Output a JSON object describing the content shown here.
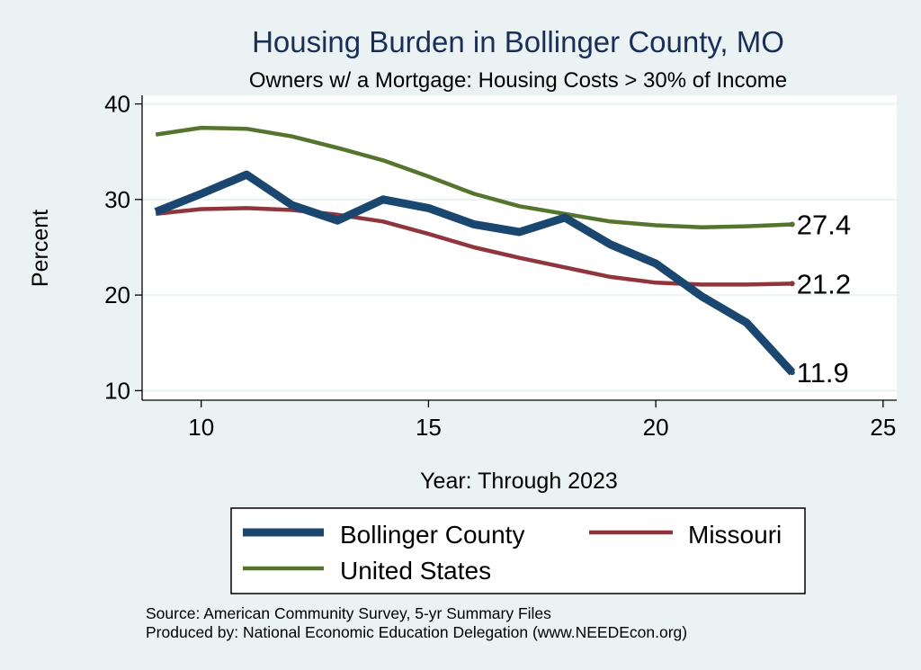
{
  "chart_data": {
    "type": "line",
    "title": "Housing Burden in Bollinger County, MO",
    "subtitle": "Owners w/ a Mortgage: Housing Costs > 30% of Income",
    "xlabel": "Year: Through 2023",
    "ylabel": "Percent",
    "xlim": [
      8.7,
      25.3
    ],
    "ylim": [
      9.0,
      40.9
    ],
    "xticks": [
      10,
      15,
      20,
      25
    ],
    "yticks": [
      10,
      20,
      30,
      40
    ],
    "grid": true,
    "legend_position": "bottom",
    "series": [
      {
        "name": "Bollinger County",
        "color": "#1a476f",
        "x": [
          9,
          10,
          11,
          12,
          13,
          14,
          15,
          16,
          17,
          18,
          19,
          20,
          21,
          22,
          23
        ],
        "values": [
          28.7,
          30.6,
          32.6,
          29.4,
          27.8,
          30.0,
          29.1,
          27.4,
          26.6,
          28.1,
          25.3,
          23.3,
          19.9,
          17.1,
          11.9
        ],
        "end_label": "11.9"
      },
      {
        "name": "Missouri",
        "color": "#90353b",
        "x": [
          9,
          10,
          11,
          12,
          13,
          14,
          15,
          16,
          17,
          18,
          19,
          20,
          21,
          22,
          23
        ],
        "values": [
          28.5,
          29.0,
          29.1,
          28.9,
          28.4,
          27.7,
          26.4,
          25.0,
          23.9,
          22.9,
          21.9,
          21.3,
          21.1,
          21.1,
          21.2
        ],
        "end_label": "21.2"
      },
      {
        "name": "United States",
        "color": "#55752f",
        "x": [
          9,
          10,
          11,
          12,
          13,
          14,
          15,
          16,
          17,
          18,
          19,
          20,
          21,
          22,
          23
        ],
        "values": [
          36.8,
          37.5,
          37.4,
          36.6,
          35.4,
          34.1,
          32.4,
          30.6,
          29.3,
          28.5,
          27.7,
          27.3,
          27.1,
          27.2,
          27.4
        ],
        "end_label": "27.4"
      }
    ]
  },
  "notes": {
    "source": "Source: American Community Survey, 5-yr Summary Files",
    "produced_by": "Produced by: National Economic Education Delegation (www.NEEDEcon.org)"
  }
}
